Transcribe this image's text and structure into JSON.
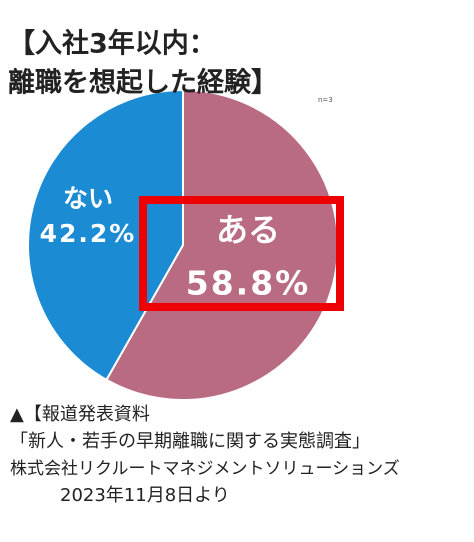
{
  "chart_data": {
    "type": "pie",
    "title": [
      "【入社3年以内：",
      "離職を想起した経験】"
    ],
    "note": "n=3",
    "categories": [
      "ある",
      "ない"
    ],
    "values": [
      58.8,
      42.2
    ],
    "value_labels": [
      "58.8%",
      "42.2%"
    ],
    "colors": [
      "#b96b82",
      "#1b8bd3"
    ]
  },
  "source": [
    "▲【報道発表資料",
    "「新人・若手の早期離職に関する実態調査」",
    "株式会社リクルートマネジメントソリューションズ",
    "2023年11月8日より"
  ]
}
